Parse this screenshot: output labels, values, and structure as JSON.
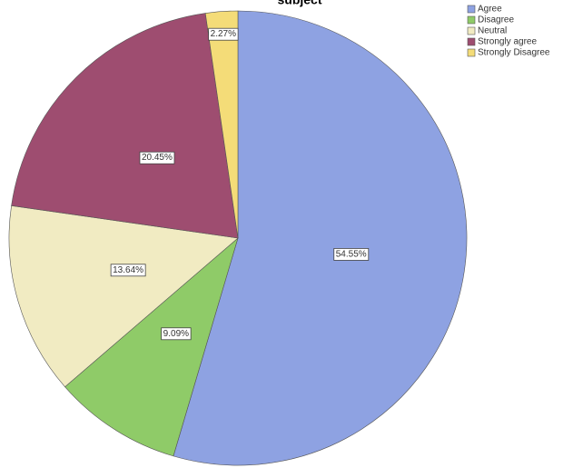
{
  "chart_data": {
    "type": "pie",
    "title": "subject",
    "categories": [
      "Agree",
      "Disagree",
      "Neutral",
      "Strongly agree",
      "Strongly Disagree"
    ],
    "values": [
      54.55,
      9.09,
      13.64,
      20.45,
      2.27
    ],
    "value_labels": [
      "54.55%",
      "9.09%",
      "13.64%",
      "20.45%",
      "2.27%"
    ],
    "colors": [
      "#8ea2e2",
      "#8fcb68",
      "#f1ebc2",
      "#9e4d70",
      "#f4dc78"
    ],
    "legend": "top-right"
  }
}
